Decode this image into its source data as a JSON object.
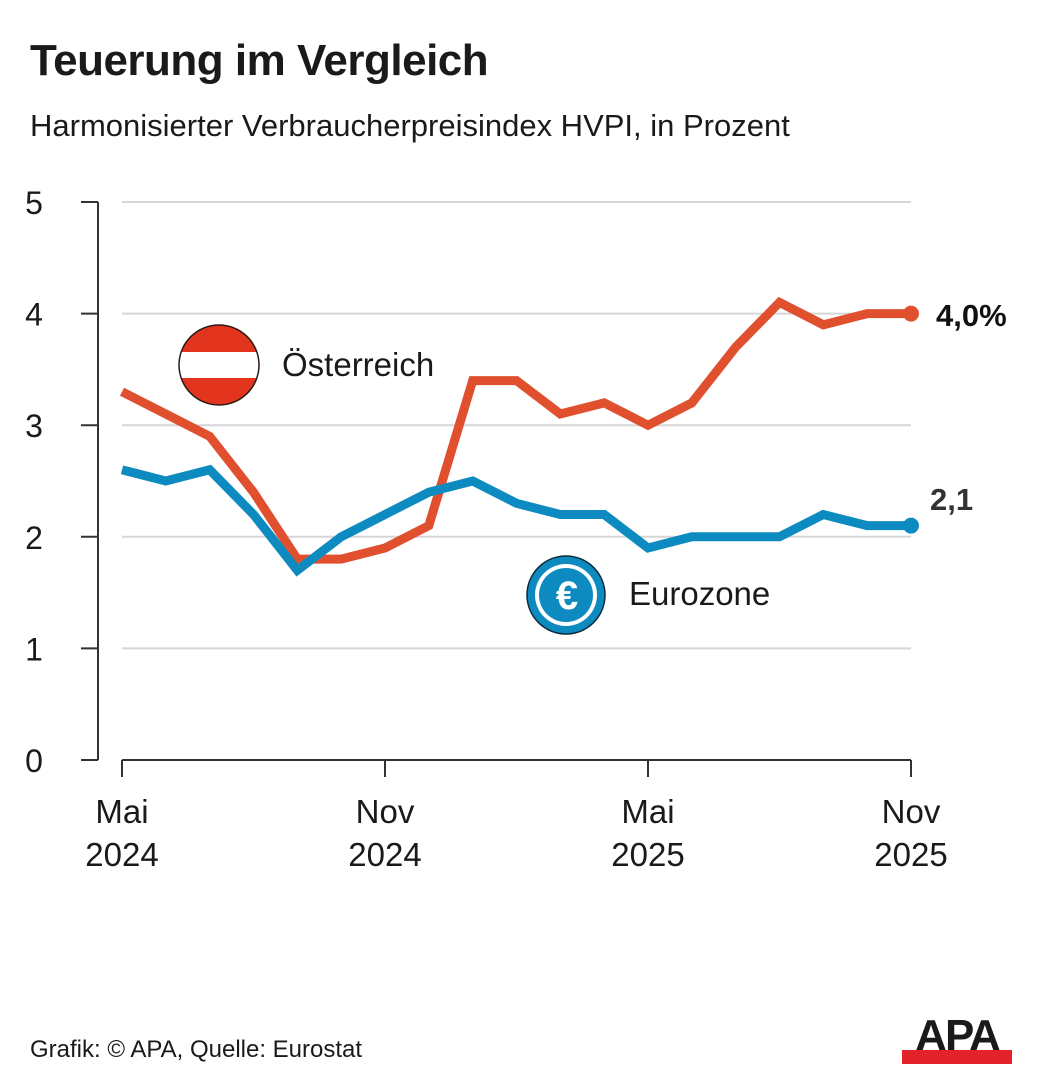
{
  "header": {
    "title": "Teuerung im Vergleich",
    "subtitle": "Harmonisierter Verbraucherpreisindex HVPI, in Prozent"
  },
  "footer": {
    "credit": "Grafik: © APA, Quelle: Eurostat",
    "logo_text": "APA",
    "logo_bar_color": "#e3232c"
  },
  "chart_data": {
    "type": "line",
    "title": "Teuerung im Vergleich",
    "subtitle": "Harmonisierter Verbraucherpreisindex HVPI, in Prozent",
    "xlabel": "",
    "ylabel": "",
    "ylim": [
      0,
      5
    ],
    "yticks": [
      "0",
      "1",
      "2",
      "3",
      "4",
      "5"
    ],
    "grid": true,
    "x": [
      "2024-05",
      "2024-06",
      "2024-07",
      "2024-08",
      "2024-09",
      "2024-10",
      "2024-11",
      "2024-12",
      "2025-01",
      "2025-02",
      "2025-03",
      "2025-04",
      "2025-05",
      "2025-06",
      "2025-07",
      "2025-08",
      "2025-09",
      "2025-10",
      "2025-11"
    ],
    "xticks": [
      {
        "index": 0,
        "line1": "Mai",
        "line2": "2024"
      },
      {
        "index": 6,
        "line1": "Nov",
        "line2": "2024"
      },
      {
        "index": 12,
        "line1": "Mai",
        "line2": "2025"
      },
      {
        "index": 18,
        "line1": "Nov",
        "line2": "2025"
      }
    ],
    "series": [
      {
        "name": "Österreich",
        "color": "#e0502f",
        "icon": "austria-flag-icon",
        "values": [
          3.3,
          3.1,
          2.9,
          2.4,
          1.8,
          1.8,
          1.9,
          2.1,
          3.4,
          3.4,
          3.1,
          3.2,
          3.0,
          3.2,
          3.7,
          4.1,
          3.9,
          4.0,
          4.0
        ],
        "end_label": "4,0%"
      },
      {
        "name": "Eurozone",
        "color": "#0d8bc0",
        "icon": "euro-icon",
        "values": [
          2.6,
          2.5,
          2.6,
          2.2,
          1.7,
          2.0,
          2.2,
          2.4,
          2.5,
          2.3,
          2.2,
          2.2,
          1.9,
          2.0,
          2.0,
          2.0,
          2.2,
          2.1,
          2.1
        ],
        "end_label": "2,1"
      }
    ]
  }
}
